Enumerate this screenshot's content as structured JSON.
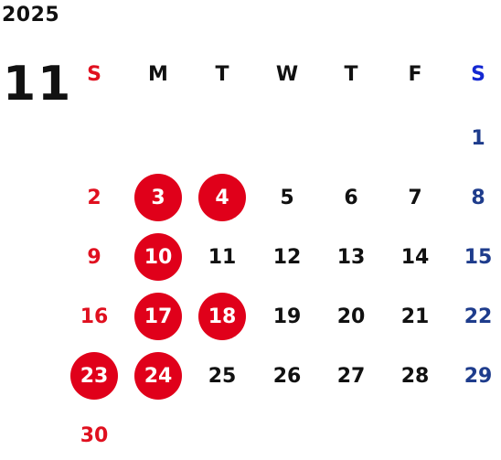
{
  "calendar": {
    "year": "2025",
    "month": "11",
    "weekdays": [
      "S",
      "M",
      "T",
      "W",
      "T",
      "F",
      "S"
    ],
    "weeks": [
      [
        "",
        "",
        "",
        "",
        "",
        "",
        "1"
      ],
      [
        "2",
        "3",
        "4",
        "5",
        "6",
        "7",
        "8"
      ],
      [
        "9",
        "10",
        "11",
        "12",
        "13",
        "14",
        "15"
      ],
      [
        "16",
        "17",
        "18",
        "19",
        "20",
        "21",
        "22"
      ],
      [
        "23",
        "24",
        "25",
        "26",
        "27",
        "28",
        "29"
      ],
      [
        "30",
        "",
        "",
        "",
        "",
        "",
        ""
      ]
    ],
    "holidays": [
      "3",
      "4",
      "10",
      "17",
      "18",
      "23",
      "24"
    ]
  },
  "colors": {
    "sunday": "#e0101f",
    "saturday": "#1e3c8c",
    "saturday_header": "#1428d2",
    "holiday_circle": "#e0001a",
    "text": "#111111"
  }
}
